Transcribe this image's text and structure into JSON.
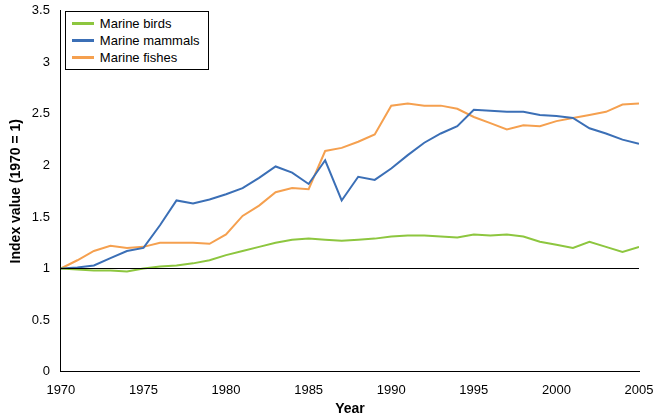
{
  "chart_data": {
    "type": "line",
    "x_label": "Year",
    "y_label": "Index value (1970 = 1)",
    "x": [
      1970,
      1971,
      1972,
      1973,
      1974,
      1975,
      1976,
      1977,
      1978,
      1979,
      1980,
      1981,
      1982,
      1983,
      1984,
      1985,
      1986,
      1987,
      1988,
      1989,
      1990,
      1991,
      1992,
      1993,
      1994,
      1995,
      1996,
      1997,
      1998,
      1999,
      2000,
      2001,
      2002,
      2003,
      2004,
      2005
    ],
    "series": [
      {
        "name": "Marine birds",
        "color": "#8dc63f",
        "values": [
          1,
          0.99,
          0.98,
          0.98,
          0.97,
          1.0,
          1.02,
          1.03,
          1.05,
          1.08,
          1.13,
          1.17,
          1.21,
          1.25,
          1.28,
          1.29,
          1.28,
          1.27,
          1.28,
          1.29,
          1.31,
          1.32,
          1.32,
          1.31,
          1.3,
          1.33,
          1.32,
          1.33,
          1.31,
          1.26,
          1.23,
          1.2,
          1.26,
          1.21,
          1.16,
          1.21
        ]
      },
      {
        "name": "Marine mammals",
        "color": "#3b6fb6",
        "values": [
          1,
          1.01,
          1.03,
          1.1,
          1.17,
          1.2,
          1.42,
          1.66,
          1.63,
          1.67,
          1.72,
          1.78,
          1.88,
          1.99,
          1.93,
          1.82,
          2.05,
          1.66,
          1.89,
          1.86,
          1.97,
          2.1,
          2.22,
          2.31,
          2.38,
          2.54,
          2.53,
          2.52,
          2.52,
          2.49,
          2.48,
          2.46,
          2.36,
          2.31,
          2.25,
          2.21
        ]
      },
      {
        "name": "Marine fishes",
        "color": "#f5a04f",
        "values": [
          1,
          1.08,
          1.17,
          1.22,
          1.2,
          1.21,
          1.25,
          1.25,
          1.25,
          1.24,
          1.33,
          1.51,
          1.61,
          1.74,
          1.78,
          1.77,
          2.14,
          2.17,
          2.23,
          2.3,
          2.58,
          2.6,
          2.58,
          2.58,
          2.55,
          2.47,
          2.41,
          2.35,
          2.39,
          2.38,
          2.43,
          2.46,
          2.49,
          2.52,
          2.59,
          2.6
        ]
      }
    ],
    "baseline": 1,
    "xlim": [
      1970,
      2005
    ],
    "xticks": [
      1970,
      1975,
      1980,
      1985,
      1990,
      1995,
      2000,
      2005
    ],
    "ylim": [
      0,
      3.5
    ],
    "yticks": [
      0,
      0.5,
      1,
      1.5,
      2,
      2.5,
      3,
      3.5
    ],
    "grid": false,
    "legend": "top-left"
  }
}
